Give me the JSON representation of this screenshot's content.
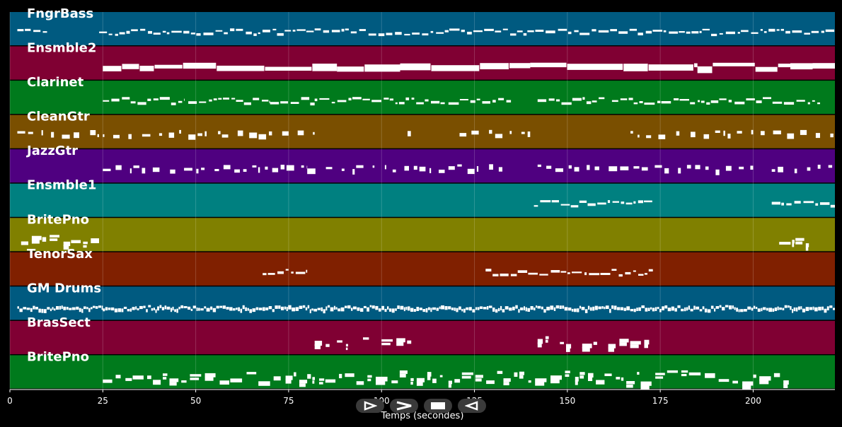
{
  "chart_data": {
    "type": "piano-roll",
    "xlabel": "Temps (secondes)",
    "xlim": [
      0,
      222
    ],
    "xticks": [
      0,
      25,
      50,
      75,
      100,
      125,
      150,
      175,
      200
    ],
    "grid": true,
    "tracks": [
      {
        "name": "FngrBass",
        "color": "#005a80",
        "notes": [
          [
            2,
            10
          ],
          [
            24,
            222
          ]
        ],
        "style": "line"
      },
      {
        "name": "Ensmble2",
        "color": "#800033",
        "notes": [
          [
            25,
            88
          ],
          [
            88,
            105
          ],
          [
            105,
            140
          ],
          [
            140,
            185
          ],
          [
            185,
            210
          ],
          [
            210,
            216
          ],
          [
            216,
            222
          ]
        ],
        "style": "thick"
      },
      {
        "name": "Clarinet",
        "color": "#007a1c",
        "notes": [
          [
            25,
            47
          ],
          [
            48,
            70
          ],
          [
            70,
            82
          ],
          [
            82,
            117
          ],
          [
            118,
            135
          ],
          [
            142,
            160
          ],
          [
            162,
            183
          ],
          [
            183,
            195
          ],
          [
            195,
            218
          ]
        ],
        "style": "line"
      },
      {
        "name": "CleanGtr",
        "color": "#7a4f00",
        "notes": [
          [
            2,
            12
          ],
          [
            14,
            24
          ],
          [
            25,
            55
          ],
          [
            56,
            82
          ],
          [
            107,
            110
          ],
          [
            121,
            140
          ],
          [
            167,
            200
          ],
          [
            202,
            222
          ]
        ],
        "style": "sparse"
      },
      {
        "name": "JazzGtr",
        "color": "#4f0080",
        "notes": [
          [
            25,
            80
          ],
          [
            80,
            117
          ],
          [
            118,
            135
          ],
          [
            142,
            170
          ],
          [
            170,
            200
          ],
          [
            205,
            222
          ]
        ],
        "style": "sparse"
      },
      {
        "name": "Ensmble1",
        "color": "#008080",
        "notes": [
          [
            141,
            173
          ],
          [
            205,
            222
          ]
        ],
        "style": "line"
      },
      {
        "name": "BritePno",
        "color": "#808000",
        "notes": [
          [
            3,
            24
          ],
          [
            207,
            215
          ]
        ],
        "style": "chord"
      },
      {
        "name": "TenorSax",
        "color": "#802000",
        "notes": [
          [
            68,
            80
          ],
          [
            128,
            173
          ]
        ],
        "style": "line"
      },
      {
        "name": "GM Drums",
        "color": "#005a80",
        "notes": [
          [
            2,
            25
          ],
          [
            25,
            222
          ]
        ],
        "style": "drums"
      },
      {
        "name": "BrasSect",
        "color": "#800033",
        "notes": [
          [
            82,
            86
          ],
          [
            88,
            91
          ],
          [
            95,
            97
          ],
          [
            100,
            103
          ],
          [
            104,
            108
          ],
          [
            142,
            145
          ],
          [
            148,
            151
          ],
          [
            154,
            158
          ],
          [
            161,
            163
          ],
          [
            164,
            172
          ]
        ],
        "style": "chord"
      },
      {
        "name": "BritePno",
        "color": "#007a1c",
        "notes": [
          [
            25,
            80
          ],
          [
            80,
            117
          ],
          [
            118,
            160
          ],
          [
            160,
            200
          ],
          [
            200,
            210
          ]
        ],
        "style": "chord"
      }
    ]
  },
  "controls": [
    {
      "name": "play-forward-button",
      "icon": "play-forward-icon"
    },
    {
      "name": "next-button",
      "icon": "chevron-right-icon"
    },
    {
      "name": "stop-button",
      "icon": "stop-icon"
    },
    {
      "name": "play-backward-button",
      "icon": "play-backward-icon"
    }
  ]
}
